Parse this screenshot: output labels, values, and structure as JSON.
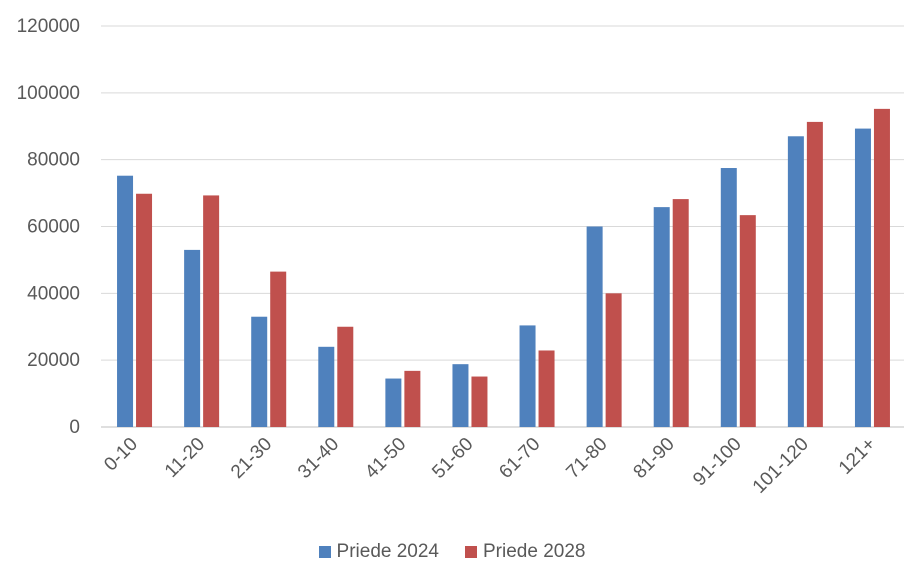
{
  "chart_data": {
    "type": "bar",
    "title": "",
    "xlabel": "",
    "ylabel": "",
    "categories": [
      "0-10",
      "11-20",
      "21-30",
      "31-40",
      "41-50",
      "51-60",
      "61-70",
      "71-80",
      "81-90",
      "91-100",
      "101-120",
      "121+"
    ],
    "series": [
      {
        "name": "Priede 2024",
        "color": "#4f81bd",
        "values": [
          75200,
          53000,
          33000,
          24000,
          14500,
          18800,
          30400,
          60000,
          65800,
          77500,
          87000,
          89300
        ]
      },
      {
        "name": "Priede 2028",
        "color": "#c0504d",
        "values": [
          69800,
          69300,
          46500,
          30000,
          16800,
          15100,
          22900,
          40000,
          68200,
          63400,
          91300,
          95200
        ]
      }
    ],
    "ylim": [
      0,
      120000
    ],
    "yticks": [
      0,
      20000,
      40000,
      60000,
      80000,
      100000,
      120000
    ],
    "grid": true,
    "legend": "bottom"
  }
}
